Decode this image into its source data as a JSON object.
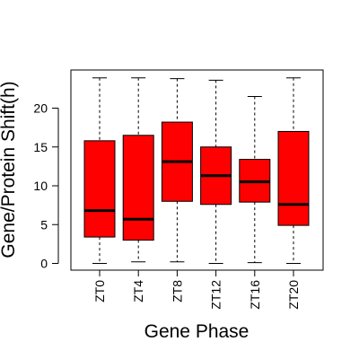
{
  "chart_data": {
    "type": "box",
    "xlabel": "Gene Phase",
    "ylabel": "Gene/Protein Shift(h)",
    "ylim": [
      0,
      24
    ],
    "yticks": [
      0,
      5,
      10,
      15,
      20
    ],
    "grid": false,
    "box_color": "#ff0000",
    "categories": [
      "ZT0",
      "ZT4",
      "ZT8",
      "ZT12",
      "ZT16",
      "ZT20"
    ],
    "boxes": [
      {
        "min": 0.0,
        "q1": 3.4,
        "median": 6.8,
        "q3": 15.8,
        "max": 23.9
      },
      {
        "min": 0.2,
        "q1": 3.0,
        "median": 5.7,
        "q3": 16.5,
        "max": 23.9
      },
      {
        "min": 0.2,
        "q1": 8.0,
        "median": 13.1,
        "q3": 18.2,
        "max": 23.8
      },
      {
        "min": 0.0,
        "q1": 7.6,
        "median": 11.3,
        "q3": 15.0,
        "max": 23.6
      },
      {
        "min": 0.1,
        "q1": 7.9,
        "median": 10.5,
        "q3": 13.4,
        "max": 21.5
      },
      {
        "min": 0.0,
        "q1": 4.9,
        "median": 7.6,
        "q3": 17.0,
        "max": 23.9
      }
    ]
  }
}
